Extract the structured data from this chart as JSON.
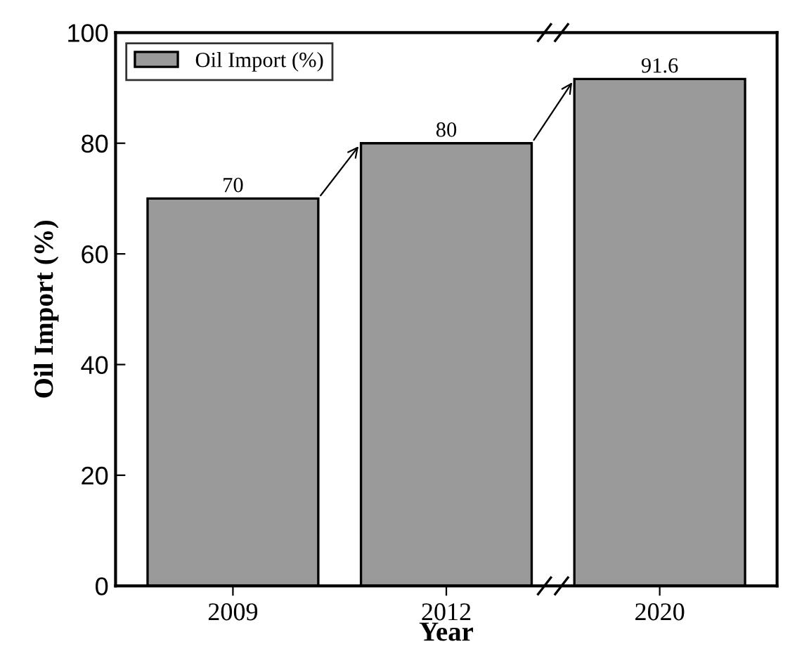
{
  "chart_data": {
    "type": "bar",
    "xlabel": "Year",
    "ylabel": "Oil Import (%)",
    "categories": [
      "2009",
      "2012",
      "2020"
    ],
    "series": [
      {
        "name": "Oil Import (%)",
        "color": "#9a9a9a",
        "values": [
          70,
          80,
          91.6
        ]
      }
    ],
    "value_labels": [
      "70",
      "80",
      "91.6"
    ],
    "ylim": [
      0,
      100
    ],
    "yticks": [
      0,
      20,
      40,
      60,
      80,
      100
    ],
    "legend": "top left",
    "grid": false
  }
}
